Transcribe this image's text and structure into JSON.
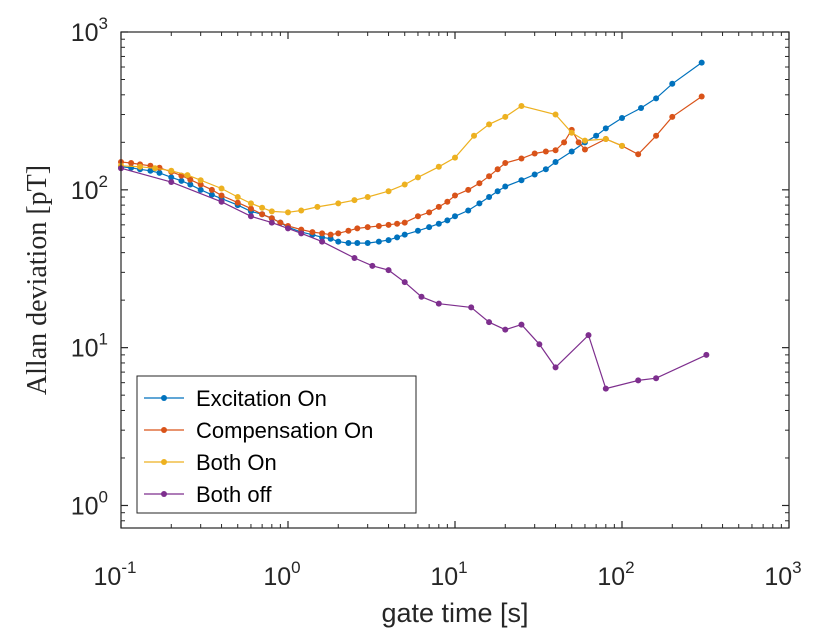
{
  "chart_data": {
    "type": "line",
    "xscale": "log",
    "yscale": "log",
    "xlabel": "gate time [s]",
    "ylabel": "Allan deviation [pT]",
    "xlim": [
      0.1,
      1000
    ],
    "ylim": [
      0.72,
      1000
    ],
    "x_ticks": [
      {
        "base": "10",
        "exp": "-1",
        "value": 0.1
      },
      {
        "base": "10",
        "exp": "0",
        "value": 1
      },
      {
        "base": "10",
        "exp": "1",
        "value": 10
      },
      {
        "base": "10",
        "exp": "2",
        "value": 100
      },
      {
        "base": "10",
        "exp": "3",
        "value": 1000
      }
    ],
    "y_ticks": [
      {
        "base": "10",
        "exp": "0",
        "value": 1
      },
      {
        "base": "10",
        "exp": "1",
        "value": 10
      },
      {
        "base": "10",
        "exp": "2",
        "value": 100
      },
      {
        "base": "10",
        "exp": "3",
        "value": 1000
      }
    ],
    "legend_position": "bottom-left",
    "series": [
      {
        "name": "Excitation On",
        "color": "#0072BD",
        "x": [
          0.1,
          0.115,
          0.13,
          0.15,
          0.17,
          0.2,
          0.23,
          0.26,
          0.3,
          0.35,
          0.4,
          0.5,
          0.6,
          0.7,
          0.8,
          0.9,
          1.0,
          1.2,
          1.4,
          1.6,
          1.8,
          2.0,
          2.3,
          2.6,
          3.0,
          3.5,
          4.0,
          4.5,
          5.0,
          6.0,
          7.0,
          8.0,
          9.0,
          10,
          12,
          14,
          16,
          18,
          20,
          25,
          30,
          35,
          40,
          50,
          60,
          70,
          80,
          100,
          130,
          160,
          200,
          300
        ],
        "y": [
          140,
          138,
          135,
          132,
          128,
          120,
          114,
          108,
          100,
          93,
          88,
          80,
          73,
          70,
          66,
          62,
          58,
          54,
          52,
          50,
          49,
          47,
          46,
          46,
          46,
          47,
          48,
          50,
          52,
          55,
          58,
          61,
          64,
          68,
          74,
          82,
          90,
          98,
          105,
          115,
          125,
          135,
          150,
          175,
          200,
          220,
          245,
          285,
          330,
          380,
          470,
          640
        ]
      },
      {
        "name": "Compensation On",
        "color": "#D95319",
        "x": [
          0.1,
          0.115,
          0.13,
          0.15,
          0.17,
          0.2,
          0.23,
          0.26,
          0.3,
          0.35,
          0.4,
          0.5,
          0.6,
          0.7,
          0.8,
          0.9,
          1.0,
          1.2,
          1.4,
          1.6,
          1.8,
          2.0,
          2.3,
          2.6,
          3.0,
          3.5,
          4.0,
          4.5,
          5.0,
          6.0,
          7.0,
          8.0,
          9.0,
          10,
          12,
          14,
          16,
          18,
          20,
          25,
          30,
          35,
          40,
          45,
          50,
          55,
          60,
          80,
          100,
          125,
          160,
          200,
          300
        ],
        "y": [
          150,
          148,
          145,
          142,
          138,
          130,
          123,
          116,
          108,
          100,
          92,
          83,
          76,
          70,
          66,
          62,
          59,
          56,
          54,
          53,
          52,
          53,
          55,
          57,
          58,
          59,
          60,
          61,
          62,
          68,
          72,
          78,
          84,
          92,
          100,
          110,
          122,
          135,
          148,
          158,
          170,
          175,
          178,
          200,
          240,
          200,
          180,
          210,
          190,
          168,
          220,
          290,
          390
        ]
      },
      {
        "name": "Both On",
        "color": "#EDB120",
        "x": [
          0.1,
          0.13,
          0.16,
          0.2,
          0.25,
          0.3,
          0.4,
          0.5,
          0.6,
          0.7,
          0.8,
          1.0,
          1.2,
          1.5,
          2.0,
          2.5,
          3.0,
          4.0,
          5.0,
          6.0,
          8.0,
          10,
          13,
          16,
          20,
          25,
          40,
          50,
          60,
          80,
          100
        ],
        "y": [
          142,
          140,
          137,
          132,
          124,
          115,
          102,
          90,
          82,
          77,
          73,
          72,
          74,
          78,
          82,
          86,
          90,
          98,
          108,
          120,
          140,
          160,
          220,
          260,
          290,
          340,
          300,
          230,
          205,
          210,
          190
        ]
      },
      {
        "name": "Both off",
        "color": "#7E2F8E",
        "x": [
          0.1,
          0.2,
          0.4,
          0.6,
          0.8,
          1.0,
          1.2,
          1.6,
          2.5,
          3.2,
          4.0,
          5.0,
          6.3,
          8.0,
          12.5,
          16,
          20,
          25,
          32,
          40,
          63,
          80,
          125,
          160,
          320
        ],
        "y": [
          137,
          112,
          84,
          68,
          62,
          57,
          53,
          47,
          37,
          33,
          31,
          26,
          21,
          19,
          18,
          14.5,
          13,
          14,
          10.5,
          7.5,
          12,
          5.5,
          6.2,
          6.4,
          9
        ]
      }
    ]
  }
}
